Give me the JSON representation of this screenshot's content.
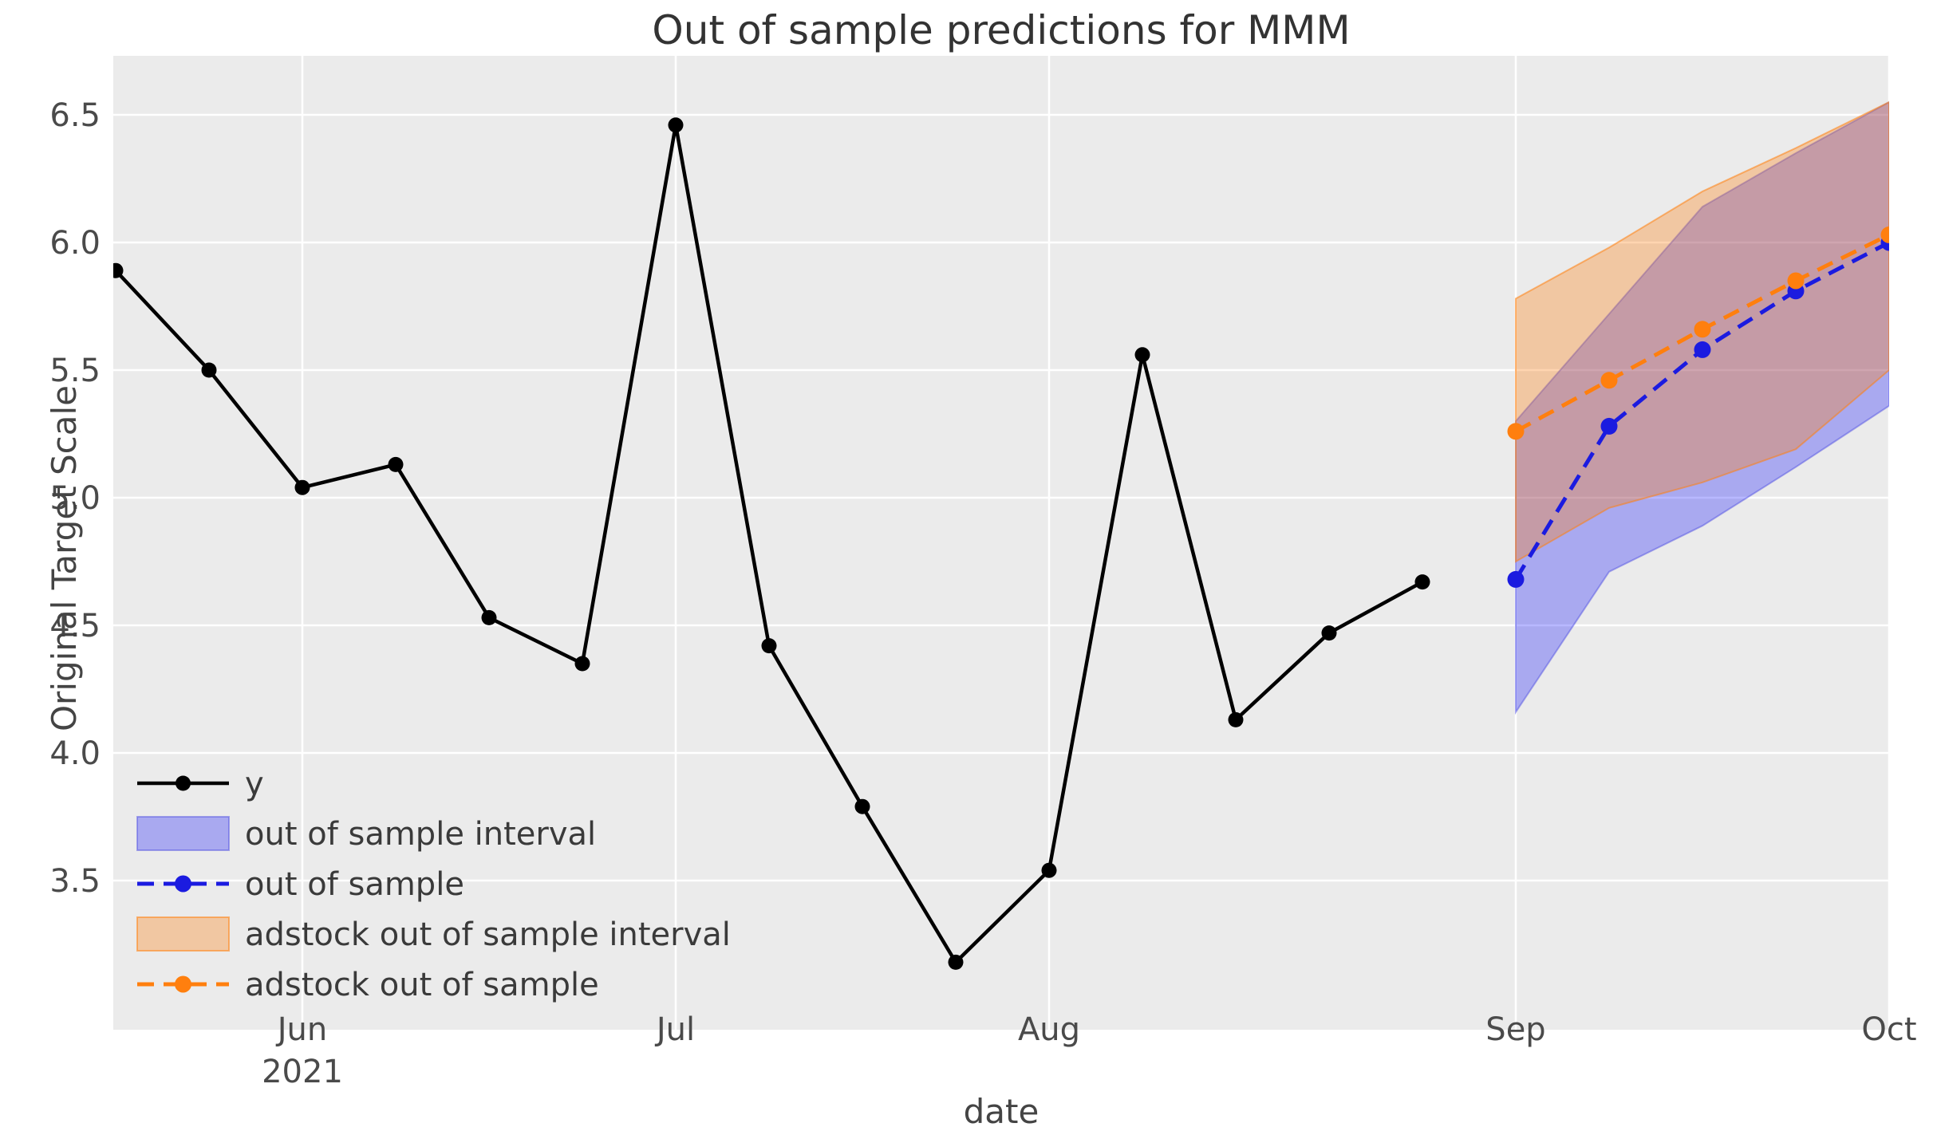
{
  "title": "Out of sample predictions for MMM",
  "axes": {
    "xlabel": "date",
    "ylabel": "Original Target Scale",
    "x_tick_labels": [
      "Jun",
      "Jul",
      "Aug",
      "Sep",
      "Oct"
    ],
    "x_tick_year_sublabel": "2021",
    "y_tick_labels": [
      "3.5",
      "4.0",
      "4.5",
      "5.0",
      "5.5",
      "6.0",
      "6.5"
    ]
  },
  "legend": {
    "position": "lower left",
    "frame": false,
    "items": [
      {
        "label": "y",
        "swatch": "line-solid",
        "color_key": "black"
      },
      {
        "label": "out of sample interval",
        "swatch": "patch",
        "color_key": "blue_band"
      },
      {
        "label": "out of sample",
        "swatch": "line-dashed",
        "color_key": "blue"
      },
      {
        "label": "adstock out of sample interval",
        "swatch": "patch",
        "color_key": "orange_band"
      },
      {
        "label": "adstock out of sample",
        "swatch": "line-dashed",
        "color_key": "orange"
      }
    ]
  },
  "colors": {
    "black": "#000000",
    "blue": "#1b1be0",
    "orange": "#ff7f0e",
    "blue_band_fill": "#0000ff",
    "blue_band_opacity": 0.28,
    "blue_band_edge": "rgba(70,70,225,0.45)",
    "orange_band_fill": "#ff7f0e",
    "orange_band_opacity": 0.33,
    "orange_band_edge": "rgba(255,127,14,0.55)",
    "plot_background": "#ebebeb",
    "grid": "#ffffff"
  },
  "chart_data": {
    "type": "line",
    "title": "Out of sample predictions for MMM",
    "xlabel": "date",
    "ylabel": "Original Target Scale",
    "ylim": [
      2.92,
      6.73
    ],
    "grid": true,
    "legend_position": "lower left",
    "x_axis": {
      "kind": "evenly-spaced-index",
      "n_points": 20,
      "tick_indices": [
        2,
        6,
        10,
        15,
        19
      ],
      "tick_labels": [
        "Jun",
        "Jul",
        "Aug",
        "Sep",
        "Oct"
      ],
      "year_label": "2021",
      "year_label_under": "Jun"
    },
    "y_ticks": [
      3.5,
      4.0,
      4.5,
      5.0,
      5.5,
      6.0,
      6.5
    ],
    "series": [
      {
        "name": "y",
        "style": "solid",
        "color_key": "black",
        "x": [
          0,
          1,
          2,
          3,
          4,
          5,
          6,
          7,
          8,
          9,
          10,
          11,
          12,
          13,
          14
        ],
        "values": [
          5.89,
          5.5,
          5.04,
          5.13,
          4.53,
          4.35,
          6.46,
          4.42,
          3.79,
          3.18,
          3.54,
          5.56,
          4.13,
          4.47,
          4.67
        ]
      },
      {
        "name": "out of sample",
        "style": "dashed",
        "color_key": "blue",
        "x": [
          15,
          16,
          17,
          18,
          19
        ],
        "values": [
          4.68,
          5.28,
          5.58,
          5.81,
          6.0
        ]
      },
      {
        "name": "adstock out of sample",
        "style": "dashed",
        "color_key": "orange",
        "x": [
          15,
          16,
          17,
          18,
          19
        ],
        "values": [
          5.26,
          5.46,
          5.66,
          5.85,
          6.03
        ]
      }
    ],
    "intervals": [
      {
        "name": "out of sample interval",
        "color_key": "blue_band",
        "x": [
          15,
          16,
          17,
          18,
          19
        ],
        "lower": [
          4.16,
          4.71,
          4.89,
          5.12,
          5.36
        ],
        "upper": [
          5.3,
          5.72,
          6.14,
          6.35,
          6.55
        ]
      },
      {
        "name": "adstock out of sample interval",
        "color_key": "orange_band",
        "x": [
          15,
          16,
          17,
          18,
          19
        ],
        "lower": [
          4.75,
          4.96,
          5.06,
          5.19,
          5.5
        ],
        "upper": [
          5.78,
          5.98,
          6.2,
          6.37,
          6.55
        ]
      }
    ]
  }
}
